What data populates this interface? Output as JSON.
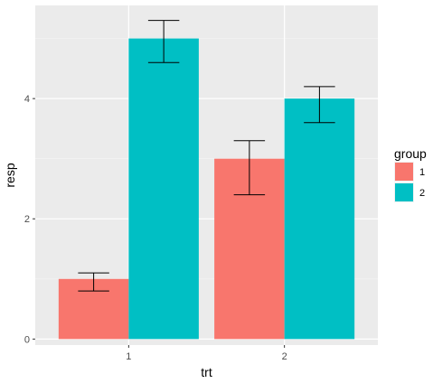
{
  "chart_data": {
    "type": "bar",
    "title": "",
    "xlabel": "trt",
    "ylabel": "resp",
    "categories": [
      "1",
      "2"
    ],
    "series": [
      {
        "name": "1",
        "color": "#F8766D",
        "values": [
          1.0,
          3.0
        ],
        "lower": [
          0.8,
          2.4
        ],
        "upper": [
          1.1,
          3.3
        ]
      },
      {
        "name": "2",
        "color": "#00BFC4",
        "values": [
          5.0,
          4.0
        ],
        "lower": [
          4.6,
          3.6
        ],
        "upper": [
          5.3,
          4.2
        ]
      }
    ],
    "ylim": [
      -0.1,
      5.55
    ],
    "yticks": [
      0,
      2,
      4
    ],
    "ytick_labels": [
      "0",
      "2",
      "4"
    ],
    "grid": true,
    "legend_position": "right",
    "legend_title": "group",
    "colors": {
      "panel_background": "#EBEBEB",
      "grid_major": "#FFFFFF",
      "grid_minor": "#F5F5F5",
      "tick_text": "#4D4D4D",
      "error_bar": "#000000"
    }
  }
}
